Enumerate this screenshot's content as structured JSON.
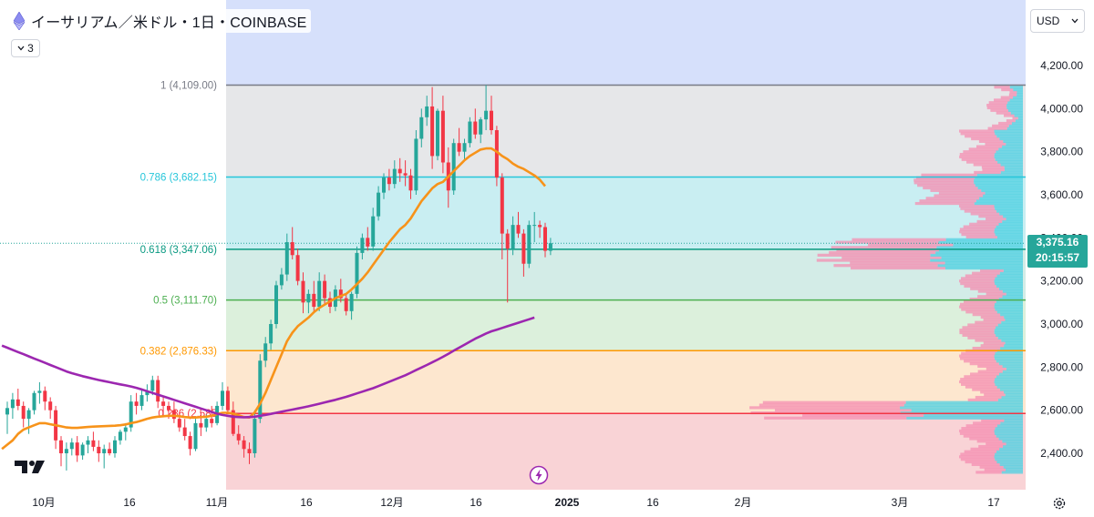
{
  "header": {
    "title": "イーサリアム／米ドル・1日・COINBASE",
    "indicator_count": "3"
  },
  "currency_selector": "USD",
  "current_price": {
    "value": "3,375.16",
    "countdown": "20:15:57"
  },
  "chart_data": {
    "type": "line",
    "title": "イーサリアム／米ドル・1日・COINBASE",
    "ylim": [
      2300,
      4250
    ],
    "y_ticks": [
      "4,200.00",
      "4,000.00",
      "3,800.00",
      "3,600.00",
      "3,400.00",
      "3,200.00",
      "3,000.00",
      "2,800.00",
      "2,600.00",
      "2,400.00"
    ],
    "x_ticks": [
      "10月",
      "16",
      "11月",
      "16",
      "12月",
      "16",
      "2025",
      "16",
      "2月",
      "3月",
      "17"
    ],
    "fibonacci_levels": [
      {
        "label": "1 (4,109.00)",
        "price": 4109.0,
        "color": "#787b86"
      },
      {
        "label": "0.786 (3,682.15)",
        "price": 3682.15,
        "color": "#26c6da"
      },
      {
        "label": "0.618 (3,347.06)",
        "price": 3347.06,
        "color": "#089981"
      },
      {
        "label": "0.5 (3,111.70)",
        "price": 3111.7,
        "color": "#4caf50"
      },
      {
        "label": "0.382 (2,876.33)",
        "price": 2876.33,
        "color": "#ff9800"
      },
      {
        "label": "0.236 (2,585",
        "price": 2585.0,
        "color": "#f23645"
      }
    ],
    "candles": [
      [
        2580,
        2640,
        2490,
        2610
      ],
      [
        2610,
        2680,
        2560,
        2650
      ],
      [
        2650,
        2700,
        2600,
        2620
      ],
      [
        2620,
        2640,
        2520,
        2560
      ],
      [
        2560,
        2610,
        2490,
        2600
      ],
      [
        2600,
        2690,
        2580,
        2680
      ],
      [
        2680,
        2730,
        2630,
        2690
      ],
      [
        2690,
        2710,
        2600,
        2640
      ],
      [
        2640,
        2660,
        2560,
        2600
      ],
      [
        2600,
        2620,
        2420,
        2460
      ],
      [
        2460,
        2480,
        2340,
        2400
      ],
      [
        2400,
        2450,
        2320,
        2420
      ],
      [
        2420,
        2470,
        2390,
        2450
      ],
      [
        2450,
        2480,
        2360,
        2390
      ],
      [
        2390,
        2450,
        2370,
        2440
      ],
      [
        2440,
        2480,
        2400,
        2460
      ],
      [
        2460,
        2500,
        2410,
        2430
      ],
      [
        2430,
        2460,
        2360,
        2400
      ],
      [
        2400,
        2440,
        2330,
        2420
      ],
      [
        2420,
        2450,
        2390,
        2400
      ],
      [
        2400,
        2480,
        2380,
        2460
      ],
      [
        2460,
        2510,
        2440,
        2500
      ],
      [
        2500,
        2540,
        2460,
        2520
      ],
      [
        2520,
        2670,
        2500,
        2640
      ],
      [
        2640,
        2680,
        2580,
        2620
      ],
      [
        2620,
        2700,
        2600,
        2670
      ],
      [
        2670,
        2720,
        2640,
        2690
      ],
      [
        2690,
        2760,
        2670,
        2740
      ],
      [
        2740,
        2760,
        2610,
        2640
      ],
      [
        2640,
        2660,
        2570,
        2620
      ],
      [
        2620,
        2640,
        2560,
        2600
      ],
      [
        2600,
        2640,
        2540,
        2560
      ],
      [
        2560,
        2590,
        2500,
        2520
      ],
      [
        2520,
        2560,
        2460,
        2480
      ],
      [
        2480,
        2500,
        2390,
        2420
      ],
      [
        2420,
        2560,
        2410,
        2540
      ],
      [
        2540,
        2590,
        2480,
        2520
      ],
      [
        2520,
        2580,
        2500,
        2560
      ],
      [
        2560,
        2620,
        2520,
        2540
      ],
      [
        2540,
        2640,
        2530,
        2620
      ],
      [
        2620,
        2730,
        2600,
        2690
      ],
      [
        2690,
        2710,
        2590,
        2600
      ],
      [
        2600,
        2640,
        2480,
        2490
      ],
      [
        2490,
        2530,
        2440,
        2460
      ],
      [
        2460,
        2480,
        2380,
        2420
      ],
      [
        2420,
        2450,
        2350,
        2400
      ],
      [
        2400,
        2600,
        2380,
        2560
      ],
      [
        2560,
        2860,
        2540,
        2830
      ],
      [
        2830,
        2940,
        2800,
        2910
      ],
      [
        2910,
        3020,
        2880,
        3000
      ],
      [
        3000,
        3200,
        2980,
        3180
      ],
      [
        3180,
        3260,
        3160,
        3230
      ],
      [
        3230,
        3420,
        3200,
        3380
      ],
      [
        3380,
        3450,
        3300,
        3320
      ],
      [
        3320,
        3350,
        3180,
        3200
      ],
      [
        3200,
        3240,
        3050,
        3100
      ],
      [
        3100,
        3160,
        3050,
        3140
      ],
      [
        3140,
        3200,
        3050,
        3080
      ],
      [
        3080,
        3240,
        3060,
        3200
      ],
      [
        3200,
        3230,
        3090,
        3120
      ],
      [
        3120,
        3150,
        3050,
        3080
      ],
      [
        3080,
        3180,
        3060,
        3160
      ],
      [
        3160,
        3210,
        3100,
        3120
      ],
      [
        3120,
        3140,
        3040,
        3060
      ],
      [
        3060,
        3150,
        3020,
        3140
      ],
      [
        3140,
        3360,
        3120,
        3330
      ],
      [
        3330,
        3420,
        3300,
        3400
      ],
      [
        3400,
        3450,
        3340,
        3360
      ],
      [
        3360,
        3540,
        3340,
        3500
      ],
      [
        3500,
        3640,
        3480,
        3610
      ],
      [
        3610,
        3700,
        3580,
        3680
      ],
      [
        3680,
        3720,
        3620,
        3650
      ],
      [
        3650,
        3760,
        3630,
        3720
      ],
      [
        3720,
        3770,
        3660,
        3700
      ],
      [
        3700,
        3760,
        3640,
        3690
      ],
      [
        3690,
        3720,
        3580,
        3620
      ],
      [
        3620,
        3900,
        3600,
        3860
      ],
      [
        3860,
        4000,
        3820,
        3960
      ],
      [
        3960,
        4060,
        3920,
        4010
      ],
      [
        4010,
        4100,
        3720,
        3780
      ],
      [
        3780,
        4000,
        3760,
        3990
      ],
      [
        3990,
        4060,
        3700,
        3750
      ],
      [
        3750,
        3820,
        3540,
        3620
      ],
      [
        3620,
        3860,
        3600,
        3840
      ],
      [
        3840,
        3910,
        3780,
        3800
      ],
      [
        3800,
        3860,
        3760,
        3840
      ],
      [
        3840,
        3960,
        3820,
        3940
      ],
      [
        3940,
        4000,
        3860,
        3880
      ],
      [
        3880,
        3960,
        3840,
        3950
      ],
      [
        3950,
        4109,
        3900,
        3990
      ],
      [
        3990,
        4060,
        3880,
        3900
      ],
      [
        3900,
        3920,
        3640,
        3680
      ],
      [
        3680,
        3700,
        3300,
        3420
      ],
      [
        3420,
        3440,
        3100,
        3350
      ],
      [
        3350,
        3500,
        3320,
        3460
      ],
      [
        3460,
        3520,
        3400,
        3420
      ],
      [
        3420,
        3440,
        3220,
        3280
      ],
      [
        3280,
        3480,
        3260,
        3460
      ],
      [
        3460,
        3520,
        3380,
        3460
      ],
      [
        3460,
        3480,
        3400,
        3450
      ],
      [
        3450,
        3470,
        3310,
        3340
      ],
      [
        3340,
        3400,
        3320,
        3375.16
      ]
    ],
    "series": [
      {
        "name": "",
        "color": "#f7931a",
        "values": [
          2420,
          2440,
          2460,
          2490,
          2510,
          2520,
          2530,
          2540,
          2540,
          2535,
          2530,
          2525,
          2520,
          2518,
          2518,
          2520,
          2522,
          2524,
          2525,
          2526,
          2527,
          2528,
          2530,
          2534,
          2540,
          2545,
          2552,
          2560,
          2566,
          2570,
          2572,
          2574,
          2574,
          2572,
          2568,
          2566,
          2566,
          2568,
          2570,
          2574,
          2582,
          2588,
          2588,
          2584,
          2576,
          2568,
          2566,
          2590,
          2630,
          2680,
          2740,
          2800,
          2860,
          2920,
          2960,
          2990,
          3010,
          3030,
          3055,
          3075,
          3090,
          3105,
          3120,
          3130,
          3140,
          3160,
          3185,
          3210,
          3240,
          3275,
          3310,
          3345,
          3380,
          3410,
          3440,
          3460,
          3490,
          3530,
          3570,
          3600,
          3630,
          3650,
          3660,
          3685,
          3710,
          3735,
          3760,
          3780,
          3795,
          3810,
          3815,
          3815,
          3800,
          3780,
          3765,
          3745,
          3730,
          3720,
          3705,
          3690,
          3670,
          3640
        ]
      },
      {
        "name": "",
        "color": "#9c27b0",
        "values": [
          2900,
          2890,
          2880,
          2870,
          2860,
          2850,
          2840,
          2830,
          2820,
          2810,
          2800,
          2790,
          2780,
          2772,
          2765,
          2758,
          2752,
          2746,
          2740,
          2735,
          2730,
          2725,
          2720,
          2715,
          2710,
          2704,
          2696,
          2688,
          2680,
          2672,
          2664,
          2656,
          2648,
          2640,
          2632,
          2624,
          2616,
          2608,
          2600,
          2592,
          2584,
          2578,
          2574,
          2570,
          2568,
          2567,
          2568,
          2570,
          2574,
          2578,
          2583,
          2588,
          2593,
          2598,
          2603,
          2608,
          2613,
          2618,
          2624,
          2630,
          2636,
          2642,
          2648,
          2655,
          2662,
          2670,
          2678,
          2686,
          2694,
          2702,
          2712,
          2722,
          2732,
          2742,
          2752,
          2762,
          2774,
          2786,
          2798,
          2810,
          2822,
          2835,
          2848,
          2862,
          2876,
          2890,
          2904,
          2918,
          2932,
          2944,
          2956,
          2966,
          2974,
          2982,
          2990,
          2998,
          3006,
          3014,
          3022,
          3030
        ]
      }
    ],
    "last_price": 3375.16,
    "grid": false,
    "legend": "none"
  }
}
